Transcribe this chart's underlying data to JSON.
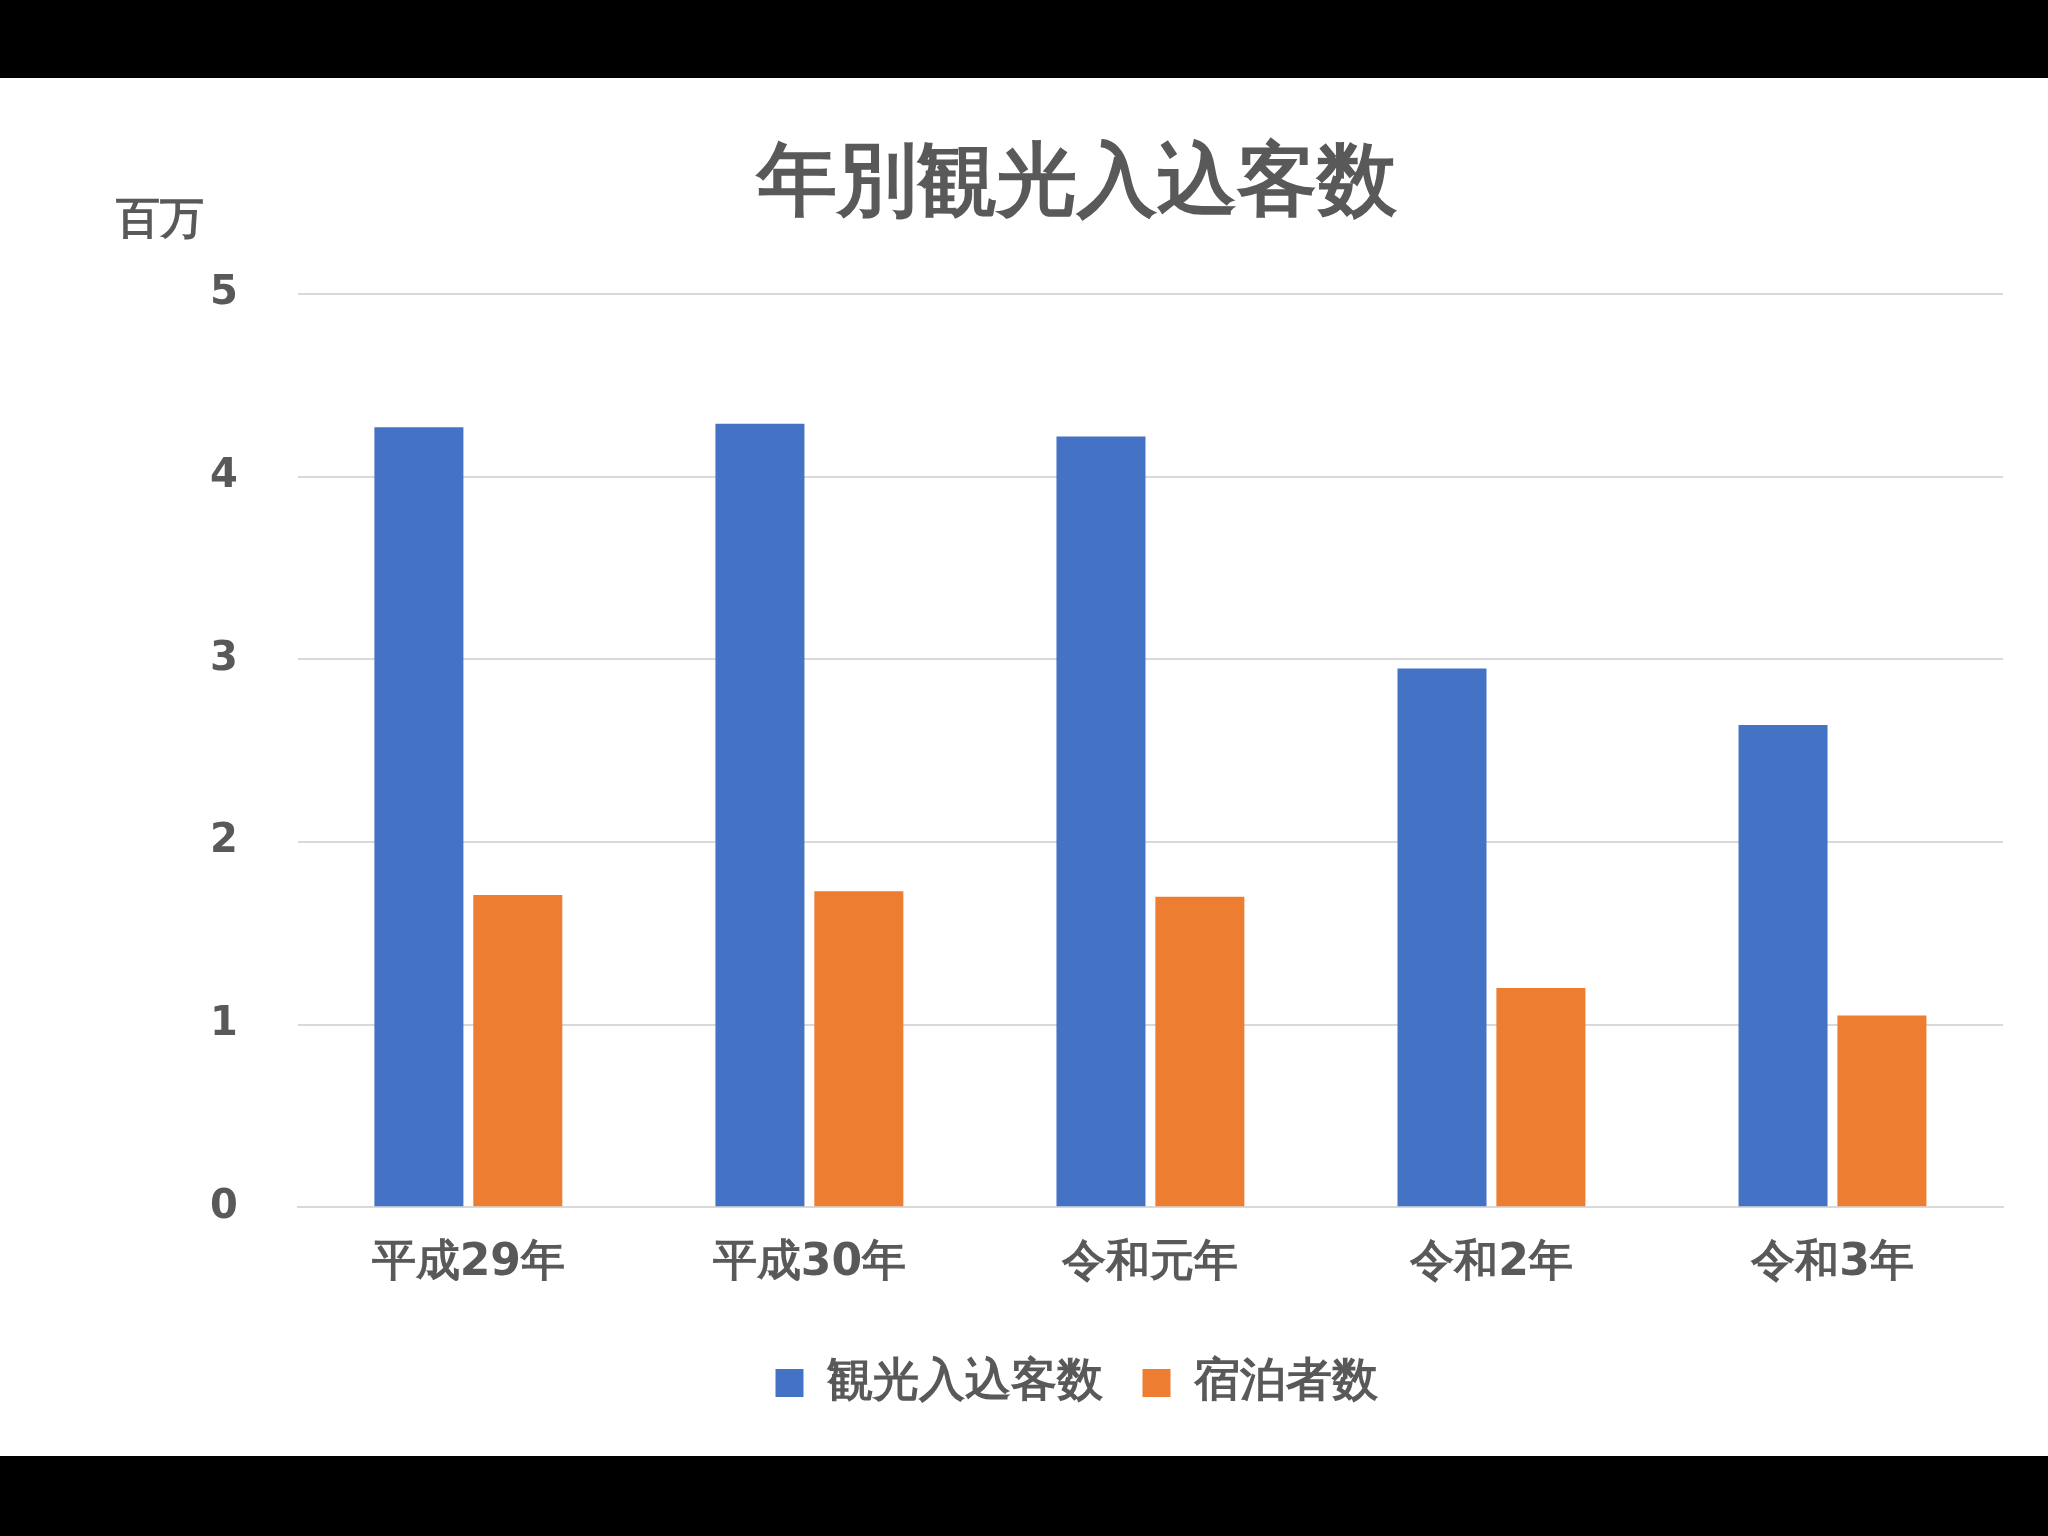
{
  "chart_data": {
    "type": "bar",
    "title": "年別観光入込客数",
    "ylabel": "百万",
    "categories": [
      "平成29年",
      "平成30年",
      "令和元年",
      "令和2年",
      "令和3年"
    ],
    "series": [
      {
        "name": "観光入込客数",
        "color": "#4472c4",
        "values": [
          4.27,
          4.29,
          4.22,
          2.95,
          2.64
        ]
      },
      {
        "name": "宿泊者数",
        "color": "#ed7d31",
        "values": [
          1.71,
          1.73,
          1.7,
          1.2,
          1.05
        ]
      }
    ],
    "ylim": [
      0,
      5
    ],
    "yticks": [
      0,
      1,
      2,
      3,
      4,
      5
    ],
    "grid": "y",
    "legend": "bottom"
  }
}
